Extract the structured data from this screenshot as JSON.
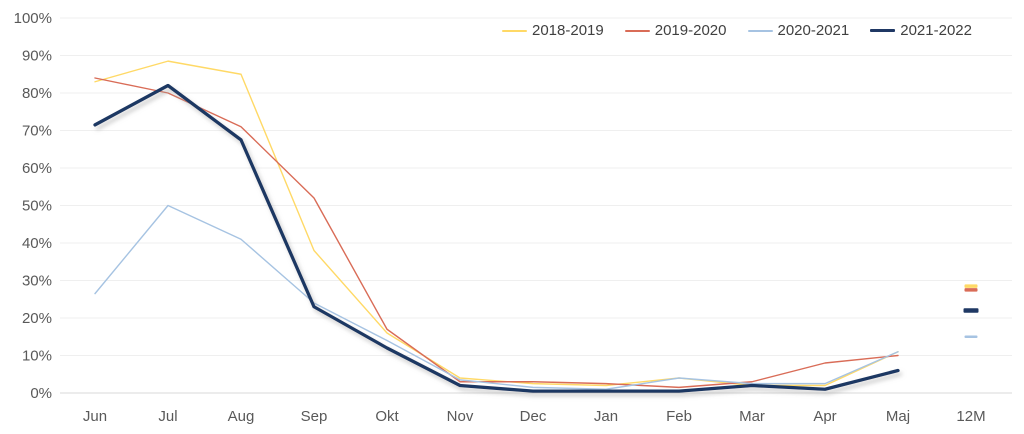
{
  "chart_data": {
    "type": "line",
    "title": "",
    "xlabel": "",
    "ylabel": "",
    "categories": [
      "Jun",
      "Jul",
      "Aug",
      "Sep",
      "Okt",
      "Nov",
      "Dec",
      "Jan",
      "Feb",
      "Mar",
      "Apr",
      "Maj",
      "12M"
    ],
    "y_axis": {
      "min": 0,
      "max": 100,
      "step": 10,
      "format": "percent",
      "tick_labels": [
        "0%",
        "10%",
        "20%",
        "30%",
        "40%",
        "50%",
        "60%",
        "70%",
        "80%",
        "90%",
        "100%"
      ]
    },
    "grid": true,
    "legend_position": "top",
    "twelve_month_note": "12M category rendered as isolated dash markers, no connecting line",
    "series": [
      {
        "name": "2018-2019",
        "color": "#FFD966",
        "line_width": 1.4,
        "shadow": false,
        "values": [
          83,
          88.5,
          85,
          38,
          16,
          4,
          2.5,
          2,
          4,
          2,
          2,
          11
        ],
        "value_12m": 28.5
      },
      {
        "name": "2019-2020",
        "color": "#D96C57",
        "line_width": 1.4,
        "shadow": false,
        "values": [
          84,
          80,
          71,
          52,
          17,
          3,
          3,
          2.5,
          1.5,
          3,
          8,
          10
        ],
        "value_12m": 27.5
      },
      {
        "name": "2020-2021",
        "color": "#A6C3E2",
        "line_width": 1.4,
        "shadow": false,
        "values": [
          26.5,
          50,
          41,
          24,
          14,
          3.5,
          1.5,
          1,
          4,
          2.5,
          2.5,
          11
        ],
        "value_12m": 15
      },
      {
        "name": "2021-2022",
        "color": "#1F3864",
        "line_width": 3.3,
        "shadow": true,
        "values": [
          71.5,
          82,
          67.5,
          23,
          12,
          2,
          0.5,
          0.5,
          0.5,
          2,
          1,
          6
        ],
        "value_12m": 22
      }
    ]
  },
  "colors": {
    "background": "#FFFFFF",
    "gridline": "#EFEFEF",
    "axis_line": "#D9D9D9",
    "tick_text": "#595959",
    "legend_text": "#404040",
    "shadow": "#A0A0A0"
  }
}
